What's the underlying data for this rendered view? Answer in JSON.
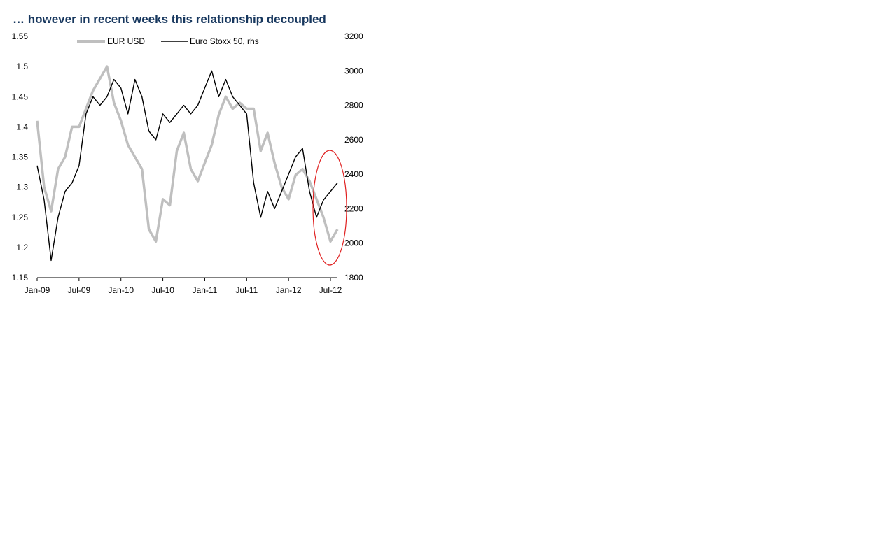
{
  "chart_data": {
    "type": "line",
    "title": "… however in recent weeks this relationship decoupled",
    "x_ticks": [
      "Jan-09",
      "Jul-09",
      "Jan-10",
      "Jul-10",
      "Jan-11",
      "Jul-11",
      "Jan-12",
      "Jul-12"
    ],
    "x_range": [
      "2009-01",
      "2012-08"
    ],
    "y_left": {
      "ticks": [
        "1.15",
        "1.2",
        "1.25",
        "1.3",
        "1.35",
        "1.4",
        "1.45",
        "1.5",
        "1.55"
      ],
      "min": 1.15,
      "max": 1.55
    },
    "y_right": {
      "ticks": [
        "1800",
        "2000",
        "2200",
        "2400",
        "2600",
        "2800",
        "3000",
        "3200"
      ],
      "min": 1800,
      "max": 3200
    },
    "grid": false,
    "legend_position": "top-center",
    "annotation": {
      "shape": "ellipse",
      "color": "#e02020",
      "around_x": "Jul-12"
    },
    "series": [
      {
        "name": "EUR USD",
        "axis": "left",
        "color": "#bfbfbf",
        "x": [
          "2009-01",
          "2009-02",
          "2009-03",
          "2009-04",
          "2009-05",
          "2009-06",
          "2009-07",
          "2009-08",
          "2009-09",
          "2009-10",
          "2009-11",
          "2009-12",
          "2010-01",
          "2010-02",
          "2010-03",
          "2010-04",
          "2010-05",
          "2010-06",
          "2010-07",
          "2010-08",
          "2010-09",
          "2010-10",
          "2010-11",
          "2010-12",
          "2011-01",
          "2011-02",
          "2011-03",
          "2011-04",
          "2011-05",
          "2011-06",
          "2011-07",
          "2011-08",
          "2011-09",
          "2011-10",
          "2011-11",
          "2011-12",
          "2012-01",
          "2012-02",
          "2012-03",
          "2012-04",
          "2012-05",
          "2012-06",
          "2012-07",
          "2012-08"
        ],
        "values": [
          1.41,
          1.3,
          1.26,
          1.33,
          1.35,
          1.4,
          1.4,
          1.43,
          1.46,
          1.48,
          1.5,
          1.44,
          1.41,
          1.37,
          1.35,
          1.33,
          1.23,
          1.21,
          1.28,
          1.27,
          1.36,
          1.39,
          1.33,
          1.31,
          1.34,
          1.37,
          1.42,
          1.45,
          1.43,
          1.44,
          1.43,
          1.43,
          1.36,
          1.39,
          1.34,
          1.3,
          1.28,
          1.32,
          1.33,
          1.31,
          1.28,
          1.25,
          1.21,
          1.23
        ]
      },
      {
        "name": "Euro Stoxx 50, rhs",
        "axis": "right",
        "color": "#000000",
        "x": [
          "2009-01",
          "2009-02",
          "2009-03",
          "2009-04",
          "2009-05",
          "2009-06",
          "2009-07",
          "2009-08",
          "2009-09",
          "2009-10",
          "2009-11",
          "2009-12",
          "2010-01",
          "2010-02",
          "2010-03",
          "2010-04",
          "2010-05",
          "2010-06",
          "2010-07",
          "2010-08",
          "2010-09",
          "2010-10",
          "2010-11",
          "2010-12",
          "2011-01",
          "2011-02",
          "2011-03",
          "2011-04",
          "2011-05",
          "2011-06",
          "2011-07",
          "2011-08",
          "2011-09",
          "2011-10",
          "2011-11",
          "2011-12",
          "2012-01",
          "2012-02",
          "2012-03",
          "2012-04",
          "2012-05",
          "2012-06",
          "2012-07",
          "2012-08"
        ],
        "values": [
          2450,
          2250,
          1900,
          2150,
          2300,
          2350,
          2450,
          2750,
          2850,
          2800,
          2850,
          2950,
          2900,
          2750,
          2950,
          2850,
          2650,
          2600,
          2750,
          2700,
          2750,
          2800,
          2750,
          2800,
          2900,
          3000,
          2850,
          2950,
          2850,
          2800,
          2750,
          2350,
          2150,
          2300,
          2200,
          2300,
          2400,
          2500,
          2550,
          2300,
          2150,
          2250,
          2300,
          2350
        ]
      }
    ]
  }
}
